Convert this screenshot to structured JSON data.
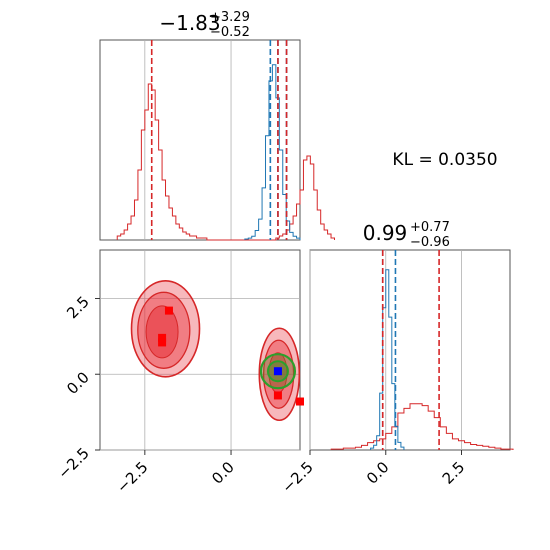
{
  "chart_data": {
    "type": "corner",
    "colors": {
      "posterior_a": "#d62728",
      "posterior_b": "#1f77b4",
      "contour_fill": "#e8353e",
      "ref_fill": "#2ca02c",
      "truth_point": "#0000ff",
      "marker": "#ff0000",
      "grid": "#b0b0b0"
    },
    "kl_text": "KL = 0.0350",
    "panels": {
      "top_left": {
        "type": "histogram",
        "title_main": "−1.83",
        "title_sup": "+3.29",
        "title_sub": "−0.52",
        "xlim": [
          -3.8,
          2.0
        ],
        "red_hist": {
          "x_start": -3.3,
          "bin_width": 0.1,
          "counts": [
            2,
            3,
            5,
            8,
            12,
            20,
            35,
            55,
            65,
            78,
            75,
            60,
            45,
            30,
            22,
            16,
            12,
            8,
            6,
            4,
            3,
            2,
            2,
            1,
            1,
            1,
            0,
            0,
            0,
            0,
            0,
            0,
            0,
            0,
            0,
            0,
            0,
            0,
            0,
            0,
            0,
            0,
            0,
            0,
            0,
            0,
            1,
            2,
            3,
            5,
            8,
            12,
            18,
            25,
            40,
            42,
            38,
            25,
            15,
            8,
            5,
            3,
            1
          ]
        },
        "blue_hist": {
          "x_start": 0.4,
          "bin_width": 0.1,
          "counts": [
            1,
            2,
            4,
            10,
            22,
            55,
            110,
            168,
            185,
            150,
            95,
            48,
            20,
            8,
            4,
            2
          ]
        },
        "red_lines": [
          -2.3,
          1.36,
          1.61
        ],
        "blue_lines": [
          1.14,
          1.36,
          1.61
        ]
      },
      "bottom_left": {
        "type": "contour",
        "xlim": [
          -3.8,
          2.0
        ],
        "ylim": [
          -2.5,
          4.1
        ],
        "xticks": [
          "−2.5",
          "0.0"
        ],
        "xtick_values": [
          -2.5,
          0.0
        ],
        "yticks": [
          "−2.5",
          "0.0",
          "2.5"
        ],
        "ytick_values": [
          -2.5,
          0.0,
          2.5
        ],
        "truth_point": [
          1.36,
          0.1
        ],
        "markers": [
          [
            -2.0,
            1.2
          ],
          [
            -1.8,
            2.1
          ],
          [
            1.36,
            -0.7
          ],
          [
            2.0,
            -0.9
          ],
          [
            -2.0,
            1.05
          ]
        ]
      },
      "bottom_right": {
        "type": "histogram",
        "title_main": "0.99",
        "title_sup": "+0.77",
        "title_sub": "−0.96",
        "xlim": [
          -2.5,
          4.1
        ],
        "xticks": [
          "−2.5",
          "0.0",
          "2.5"
        ],
        "xtick_values": [
          -2.5,
          0.0,
          2.5
        ],
        "red_hist": {
          "x_start": -1.8,
          "bin_width": 0.2,
          "counts": [
            1,
            1,
            2,
            2,
            3,
            5,
            8,
            10,
            12,
            18,
            25,
            40,
            45,
            50,
            50,
            48,
            42,
            35,
            25,
            18,
            12,
            10,
            8,
            6,
            5,
            4,
            3,
            2,
            1,
            1
          ]
        },
        "blue_hist": {
          "x_start": -0.5,
          "bin_width": 0.1,
          "counts": [
            2,
            5,
            15,
            60,
            150,
            190,
            140,
            70,
            25,
            8,
            3
          ]
        },
        "red_lines": [
          -0.1,
          1.76
        ],
        "blue_lines": [
          -0.1,
          0.32
        ]
      }
    }
  }
}
